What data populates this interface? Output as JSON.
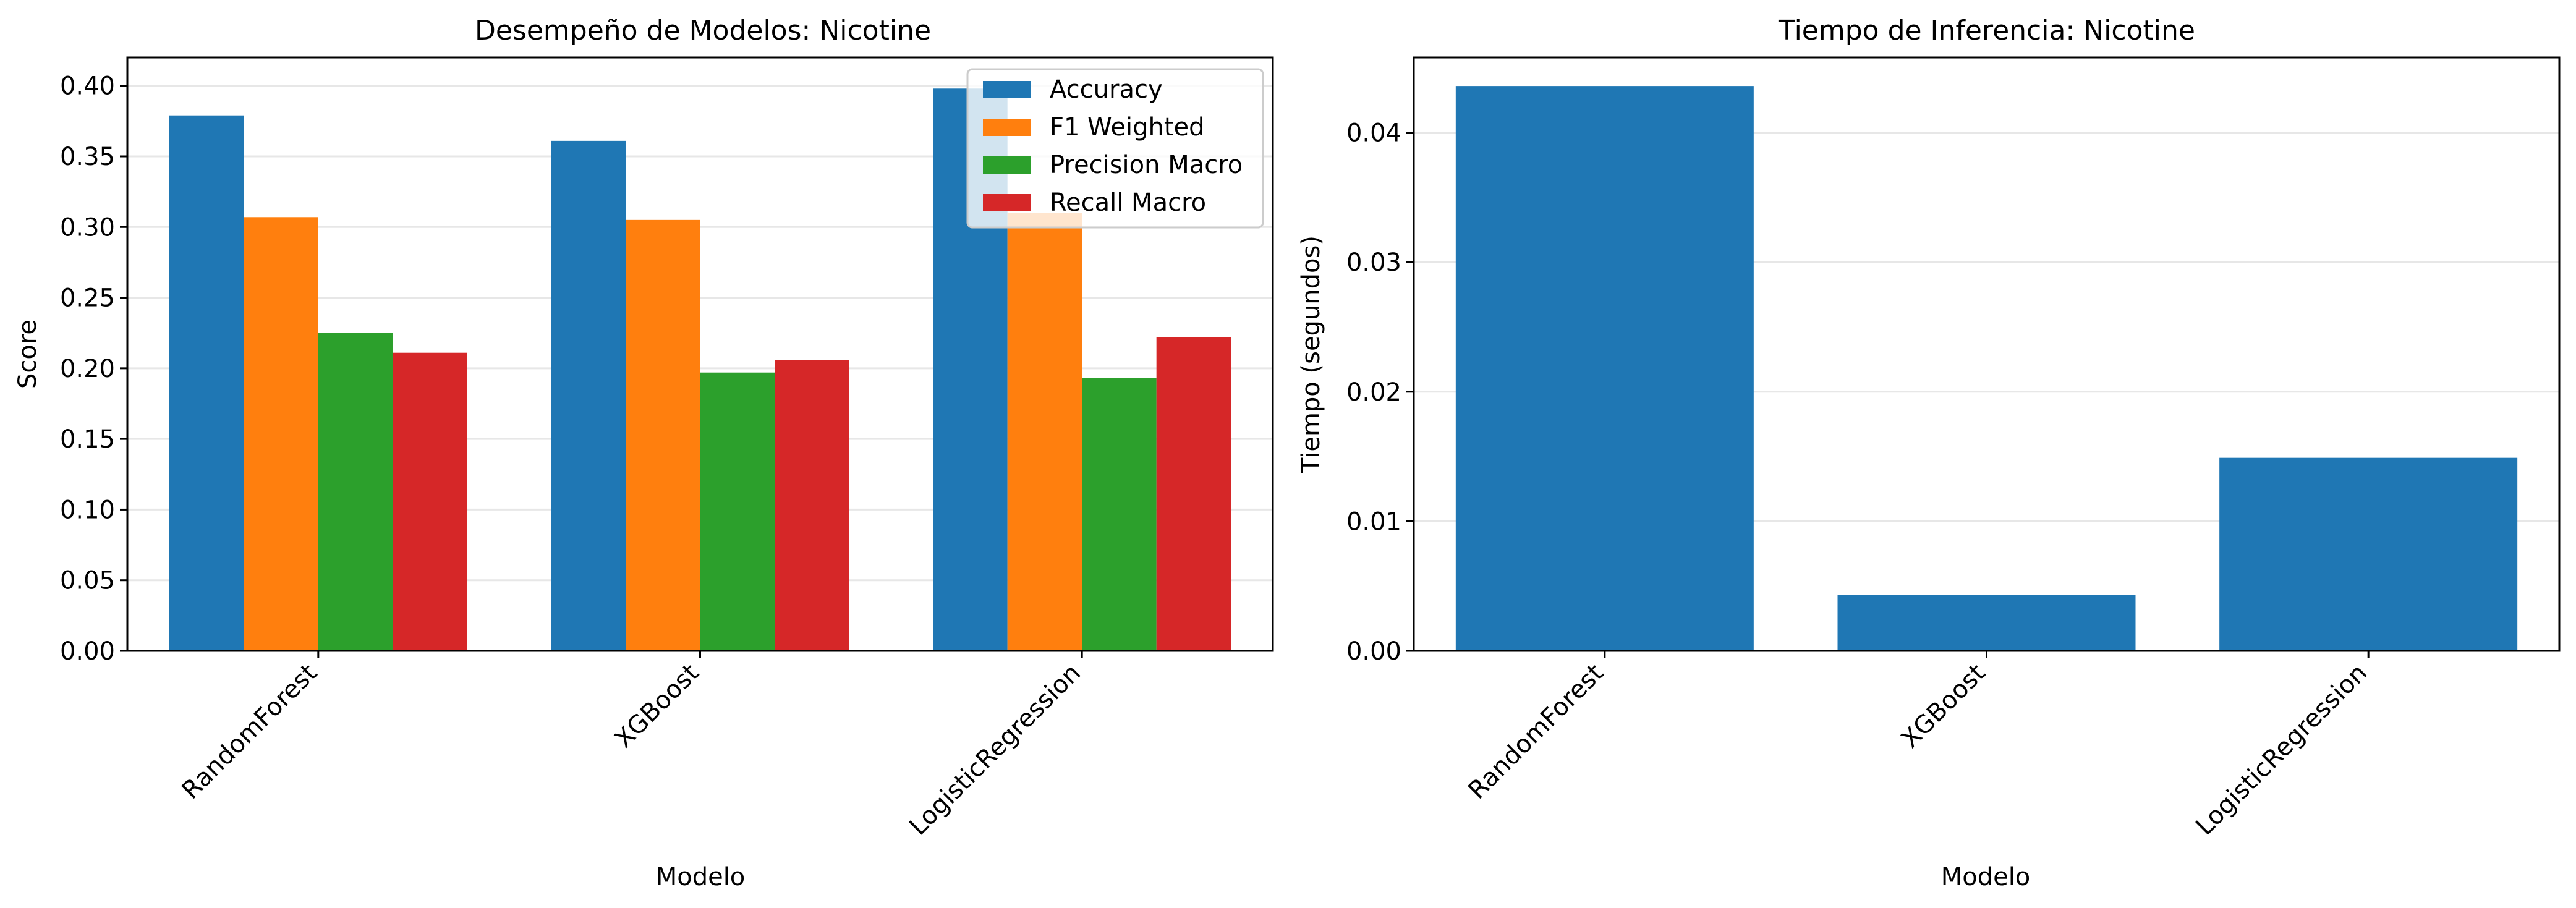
{
  "chart_data": [
    {
      "type": "bar",
      "title": "Desempeño de Modelos: Nicotine",
      "xlabel": "Modelo",
      "ylabel": "Score",
      "categories": [
        "RandomForest",
        "XGBoost",
        "LogisticRegression"
      ],
      "series": [
        {
          "name": "Accuracy",
          "color": "#1f77b4",
          "values": [
            0.379,
            0.361,
            0.398
          ]
        },
        {
          "name": "F1 Weighted",
          "color": "#ff7f0e",
          "values": [
            0.307,
            0.305,
            0.31
          ]
        },
        {
          "name": "Precision Macro",
          "color": "#2ca02c",
          "values": [
            0.225,
            0.197,
            0.193
          ]
        },
        {
          "name": "Recall Macro",
          "color": "#d62728",
          "values": [
            0.211,
            0.206,
            0.222
          ]
        }
      ],
      "ylim": [
        0,
        0.42
      ],
      "yticks": [
        "0.00",
        "0.05",
        "0.10",
        "0.15",
        "0.20",
        "0.25",
        "0.30",
        "0.35",
        "0.40"
      ],
      "grid": "horizontal",
      "legend": "top-right"
    },
    {
      "type": "bar",
      "title": "Tiempo de Inferencia: Nicotine",
      "xlabel": "Modelo",
      "ylabel": "Tiempo (segundos)",
      "categories": [
        "RandomForest",
        "XGBoost",
        "LogisticRegression"
      ],
      "series": [
        {
          "color": "#1f77b4",
          "values": [
            0.0436,
            0.0043,
            0.0149
          ]
        }
      ],
      "ylim": [
        0,
        0.0458
      ],
      "yticks": [
        "0.00",
        "0.01",
        "0.02",
        "0.03",
        "0.04"
      ],
      "grid": "horizontal"
    }
  ]
}
